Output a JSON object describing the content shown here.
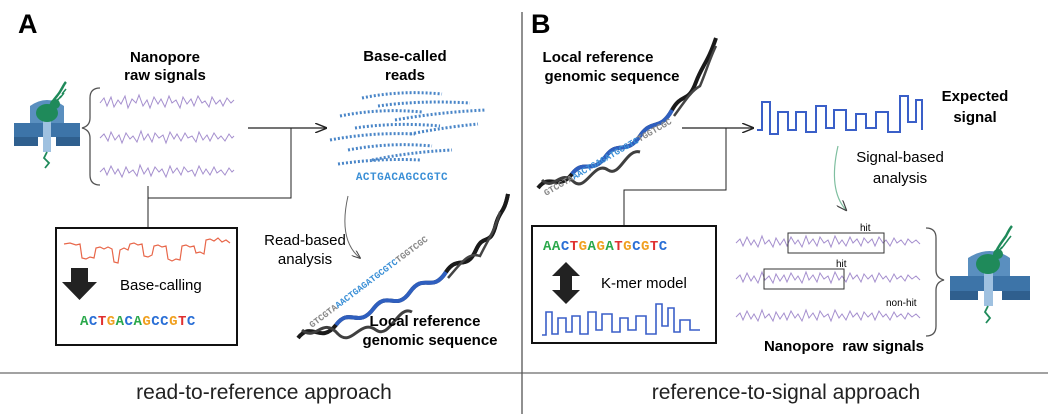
{
  "panel_a": {
    "letter": "A",
    "raw_signals_label_1": "Nanopore",
    "raw_signals_label_2": "raw signals",
    "reads_label_1": "Base-called",
    "reads_label_2": "reads",
    "read_sequence": "ACTGACAGCCGTC",
    "analysis_label_1": "Read-based",
    "analysis_label_2": "analysis",
    "ref_label_1": "Local reference",
    "ref_label_2": "genomic sequence",
    "helix_seq_grey_1": "GTCGTA",
    "helix_seq_blue": "AACTGAGATGCGTC",
    "helix_seq_grey_2": "TGGTCGC",
    "basecalling_label": "Base-calling",
    "called_sequence": "ACTGACAGCCGTC",
    "caption": "read-to-reference approach"
  },
  "panel_b": {
    "letter": "B",
    "ref_label_1": "Local reference",
    "ref_label_2": "genomic sequence",
    "helix_seq_grey_1": "GTCGTA",
    "helix_seq_blue": "AACTGAGATGCGTC",
    "helix_seq_grey_2": "TGGTCGC",
    "expected_label_1": "Expected",
    "expected_label_2": "signal",
    "analysis_label_1": "Signal-based",
    "analysis_label_2": "analysis",
    "kmer_sequence": "AACTGAGATGCGTC",
    "kmer_label": "K-mer model",
    "hit_label_1": "hit",
    "hit_label_2": "hit",
    "nonhit_label": "non-hit",
    "raw_signals_label": "Nanopore  raw signals",
    "caption": "reference-to-signal approach"
  },
  "colors": {
    "signal_purple": "#a58fce",
    "signal_red": "#e8674a",
    "helix_blue": "#2f5fbf",
    "read_blue": "#4a86c8",
    "seq_blue": "#3a8fd6",
    "pore_blue": "#3d74a8",
    "protein_green": "#1f8a5a",
    "base_A": "#2aa84a",
    "base_C": "#2a6fd6",
    "base_G": "#f0a020",
    "base_T": "#e03030"
  }
}
